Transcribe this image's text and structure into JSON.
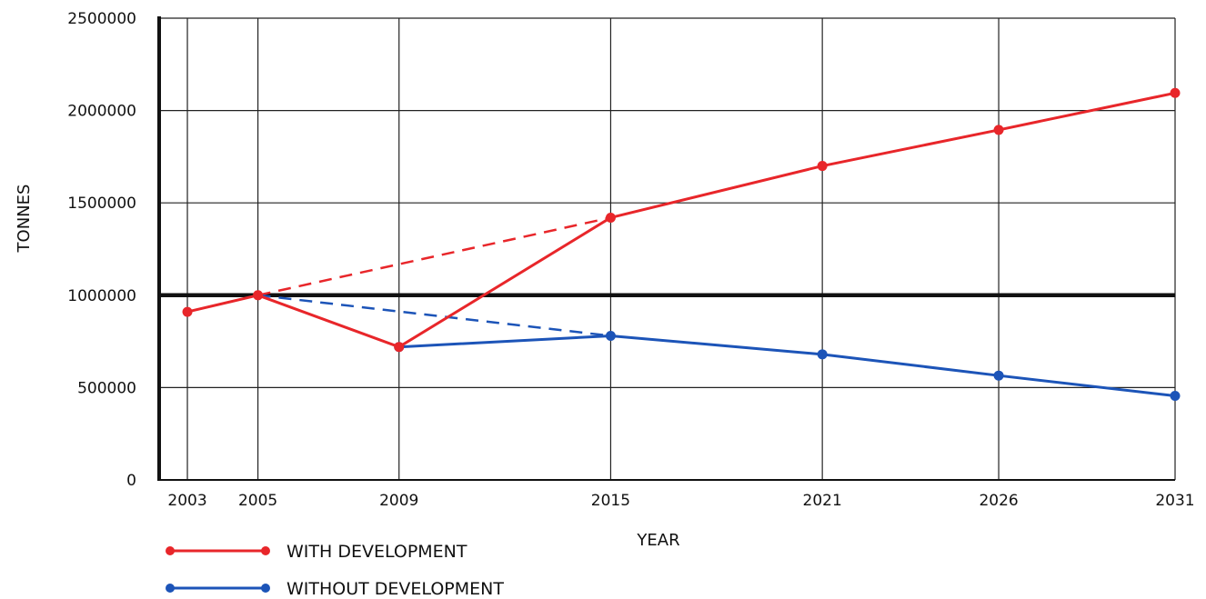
{
  "chart_data": {
    "type": "line",
    "title": "",
    "xlabel": "YEAR",
    "ylabel": "TONNES",
    "categories": [
      "2003",
      "2005",
      "2009",
      "2015",
      "2021",
      "2026",
      "2031"
    ],
    "x": [
      2003,
      2005,
      2009,
      2015,
      2021,
      2026,
      2031
    ],
    "ylim": [
      0,
      2500000
    ],
    "xlim": [
      2002.2,
      2031
    ],
    "y_ticks": [
      0,
      500000,
      1000000,
      1500000,
      2000000,
      2500000
    ],
    "y_tick_labels": [
      "0",
      "500000",
      "1000000",
      "1500000",
      "2000000",
      "2500000"
    ],
    "grid": true,
    "legend_position": "bottom-left",
    "reference_line": {
      "y": 1000000,
      "color": "#111111"
    },
    "series": [
      {
        "name": "WITH DEVELOPMENT",
        "color": "#e8262a",
        "x": [
          2003,
          2005,
          2009,
          2015,
          2021,
          2026,
          2031
        ],
        "values": [
          910000,
          1000000,
          720000,
          1420000,
          1700000,
          1895000,
          2095000
        ]
      },
      {
        "name": "WITHOUT DEVELOPMENT",
        "color": "#1c54b8",
        "x": [
          2009,
          2015,
          2021,
          2026,
          2031
        ],
        "values": [
          720000,
          780000,
          680000,
          565000,
          455000
        ]
      }
    ],
    "projections": [
      {
        "color": "#e8262a",
        "dashed": true,
        "x": [
          2005,
          2015
        ],
        "values": [
          1000000,
          1420000
        ]
      },
      {
        "color": "#1c54b8",
        "dashed": true,
        "x": [
          2005,
          2015
        ],
        "values": [
          1000000,
          780000
        ]
      }
    ]
  }
}
